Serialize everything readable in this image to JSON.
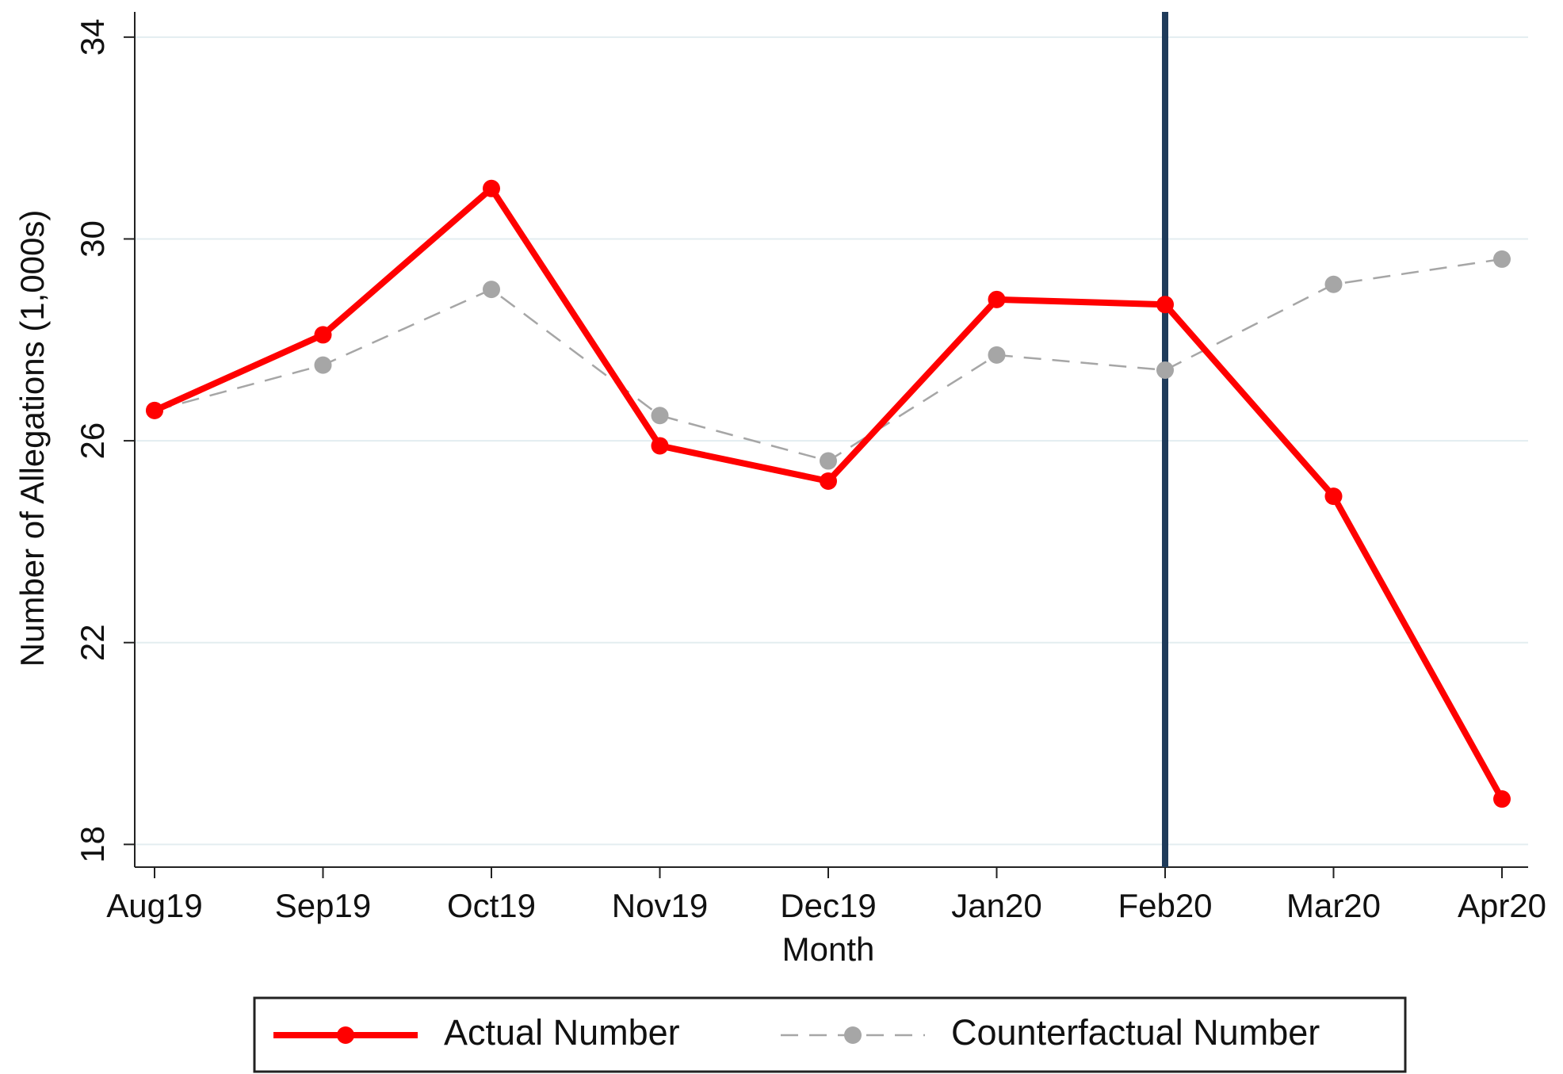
{
  "chart_data": {
    "type": "line",
    "x_label": "Month",
    "y_label": "Number of Allegations (1,000s)",
    "categories": [
      "Aug19",
      "Sep19",
      "Oct19",
      "Nov19",
      "Dec19",
      "Jan20",
      "Feb20",
      "Mar20",
      "Apr20"
    ],
    "series": [
      {
        "name": "Actual Number",
        "color": "#ff0000",
        "dashed": false,
        "values": [
          26.6,
          28.1,
          31.0,
          25.9,
          25.2,
          28.8,
          28.7,
          24.9,
          18.9
        ]
      },
      {
        "name": "Counterfactual Number",
        "color": "#a6a6a6",
        "dashed": true,
        "values": [
          26.6,
          27.5,
          29.0,
          26.5,
          25.6,
          27.7,
          27.4,
          29.1,
          29.6
        ]
      }
    ],
    "ylim": [
      17.55,
      34.5
    ],
    "yticks": [
      18,
      22,
      26,
      30,
      34
    ],
    "grid": true,
    "vline": "Feb20",
    "vline_color": "#1f3b5a",
    "legend": "bottom"
  }
}
